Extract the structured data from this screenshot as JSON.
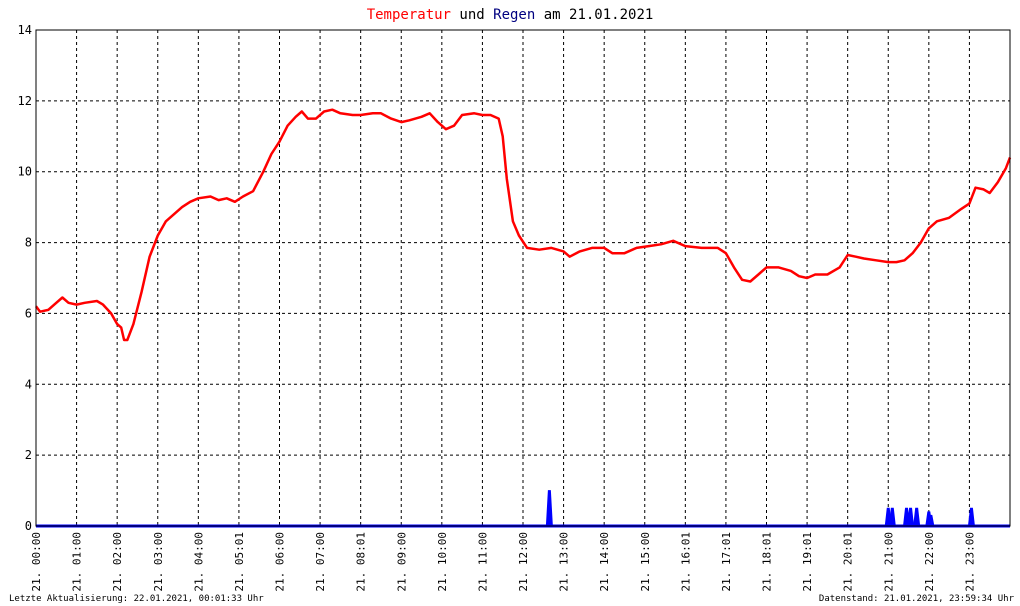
{
  "chart_data": {
    "type": "line",
    "title_parts": [
      {
        "text": "Temperatur",
        "color": "#ff0000"
      },
      {
        "text": " und ",
        "color": "#000000"
      },
      {
        "text": "Regen",
        "color": "#000080"
      },
      {
        "text": " am 21.01.2021",
        "color": "#000000"
      }
    ],
    "xlabel": "",
    "ylabel": "",
    "ylim": [
      0,
      14
    ],
    "y_ticks": [
      0,
      2,
      4,
      6,
      8,
      10,
      12,
      14
    ],
    "x_range_hours": [
      0,
      24
    ],
    "x_ticks": [
      {
        "hour": 0,
        "label": "21. 00:00"
      },
      {
        "hour": 1,
        "label": "21. 01:00"
      },
      {
        "hour": 2,
        "label": "21. 02:00"
      },
      {
        "hour": 3,
        "label": "21. 03:00"
      },
      {
        "hour": 4,
        "label": "21. 04:00"
      },
      {
        "hour": 5,
        "label": "21. 05:01"
      },
      {
        "hour": 6,
        "label": "21. 06:00"
      },
      {
        "hour": 7,
        "label": "21. 07:00"
      },
      {
        "hour": 8,
        "label": "21. 08:01"
      },
      {
        "hour": 9,
        "label": "21. 09:00"
      },
      {
        "hour": 10,
        "label": "21. 10:00"
      },
      {
        "hour": 11,
        "label": "21. 11:00"
      },
      {
        "hour": 12,
        "label": "21. 12:00"
      },
      {
        "hour": 13,
        "label": "21. 13:00"
      },
      {
        "hour": 14,
        "label": "21. 14:00"
      },
      {
        "hour": 15,
        "label": "21. 15:00"
      },
      {
        "hour": 16,
        "label": "21. 16:01"
      },
      {
        "hour": 17,
        "label": "21. 17:01"
      },
      {
        "hour": 18,
        "label": "21. 18:01"
      },
      {
        "hour": 19,
        "label": "21. 19:01"
      },
      {
        "hour": 20,
        "label": "21. 20:01"
      },
      {
        "hour": 21,
        "label": "21. 21:00"
      },
      {
        "hour": 22,
        "label": "21. 22:00"
      },
      {
        "hour": 23,
        "label": "21. 23:00"
      }
    ],
    "grid": true,
    "series": [
      {
        "name": "Temperatur",
        "color": "#ff0000",
        "points": [
          [
            0.0,
            6.2
          ],
          [
            0.1,
            6.05
          ],
          [
            0.3,
            6.1
          ],
          [
            0.5,
            6.3
          ],
          [
            0.65,
            6.45
          ],
          [
            0.8,
            6.3
          ],
          [
            1.0,
            6.25
          ],
          [
            1.2,
            6.3
          ],
          [
            1.5,
            6.35
          ],
          [
            1.65,
            6.25
          ],
          [
            1.85,
            6.0
          ],
          [
            2.0,
            5.7
          ],
          [
            2.1,
            5.6
          ],
          [
            2.17,
            5.25
          ],
          [
            2.25,
            5.25
          ],
          [
            2.4,
            5.7
          ],
          [
            2.6,
            6.6
          ],
          [
            2.8,
            7.6
          ],
          [
            3.0,
            8.2
          ],
          [
            3.2,
            8.6
          ],
          [
            3.4,
            8.8
          ],
          [
            3.6,
            9.0
          ],
          [
            3.8,
            9.15
          ],
          [
            4.0,
            9.25
          ],
          [
            4.3,
            9.3
          ],
          [
            4.5,
            9.2
          ],
          [
            4.7,
            9.25
          ],
          [
            4.9,
            9.15
          ],
          [
            5.1,
            9.3
          ],
          [
            5.35,
            9.45
          ],
          [
            5.6,
            10.0
          ],
          [
            5.8,
            10.5
          ],
          [
            6.0,
            10.85
          ],
          [
            6.2,
            11.3
          ],
          [
            6.4,
            11.55
          ],
          [
            6.55,
            11.7
          ],
          [
            6.7,
            11.5
          ],
          [
            6.9,
            11.5
          ],
          [
            7.1,
            11.7
          ],
          [
            7.3,
            11.75
          ],
          [
            7.5,
            11.65
          ],
          [
            7.8,
            11.6
          ],
          [
            8.0,
            11.6
          ],
          [
            8.3,
            11.65
          ],
          [
            8.5,
            11.65
          ],
          [
            8.75,
            11.5
          ],
          [
            9.0,
            11.4
          ],
          [
            9.2,
            11.45
          ],
          [
            9.5,
            11.55
          ],
          [
            9.7,
            11.65
          ],
          [
            9.9,
            11.4
          ],
          [
            10.1,
            11.2
          ],
          [
            10.3,
            11.3
          ],
          [
            10.5,
            11.6
          ],
          [
            10.8,
            11.65
          ],
          [
            11.0,
            11.6
          ],
          [
            11.2,
            11.6
          ],
          [
            11.4,
            11.5
          ],
          [
            11.5,
            11.0
          ],
          [
            11.6,
            9.8
          ],
          [
            11.75,
            8.6
          ],
          [
            11.9,
            8.2
          ],
          [
            12.1,
            7.85
          ],
          [
            12.4,
            7.8
          ],
          [
            12.7,
            7.85
          ],
          [
            13.0,
            7.75
          ],
          [
            13.15,
            7.6
          ],
          [
            13.4,
            7.75
          ],
          [
            13.7,
            7.85
          ],
          [
            14.0,
            7.85
          ],
          [
            14.2,
            7.7
          ],
          [
            14.5,
            7.7
          ],
          [
            14.8,
            7.85
          ],
          [
            15.1,
            7.9
          ],
          [
            15.4,
            7.95
          ],
          [
            15.7,
            8.05
          ],
          [
            16.0,
            7.9
          ],
          [
            16.4,
            7.85
          ],
          [
            16.8,
            7.85
          ],
          [
            17.0,
            7.7
          ],
          [
            17.2,
            7.3
          ],
          [
            17.4,
            6.95
          ],
          [
            17.6,
            6.9
          ],
          [
            17.8,
            7.1
          ],
          [
            18.0,
            7.3
          ],
          [
            18.3,
            7.3
          ],
          [
            18.6,
            7.2
          ],
          [
            18.8,
            7.05
          ],
          [
            19.0,
            7.0
          ],
          [
            19.2,
            7.1
          ],
          [
            19.5,
            7.1
          ],
          [
            19.8,
            7.3
          ],
          [
            20.0,
            7.65
          ],
          [
            20.2,
            7.6
          ],
          [
            20.4,
            7.55
          ],
          [
            20.7,
            7.5
          ],
          [
            21.0,
            7.45
          ],
          [
            21.2,
            7.45
          ],
          [
            21.4,
            7.5
          ],
          [
            21.6,
            7.7
          ],
          [
            21.8,
            8.0
          ],
          [
            22.0,
            8.4
          ],
          [
            22.2,
            8.6
          ],
          [
            22.5,
            8.7
          ],
          [
            22.8,
            8.95
          ],
          [
            23.0,
            9.1
          ],
          [
            23.15,
            9.55
          ],
          [
            23.35,
            9.5
          ],
          [
            23.5,
            9.4
          ],
          [
            23.7,
            9.7
          ],
          [
            23.9,
            10.1
          ],
          [
            24.0,
            10.4
          ]
        ]
      },
      {
        "name": "Regen",
        "color": "#0000ff",
        "baseline": 0,
        "pulses": [
          [
            12.65,
            1.0
          ],
          [
            21.0,
            0.5
          ],
          [
            21.1,
            0.5
          ],
          [
            21.45,
            0.5
          ],
          [
            21.55,
            0.5
          ],
          [
            21.7,
            0.5
          ],
          [
            22.0,
            0.4
          ],
          [
            22.05,
            0.3
          ],
          [
            23.05,
            0.5
          ]
        ]
      }
    ]
  },
  "footer": {
    "left": "Letzte Aktualisierung: 22.01.2021, 00:01:33 Uhr",
    "right": "Datenstand: 21.01.2021, 23:59:34 Uhr"
  }
}
